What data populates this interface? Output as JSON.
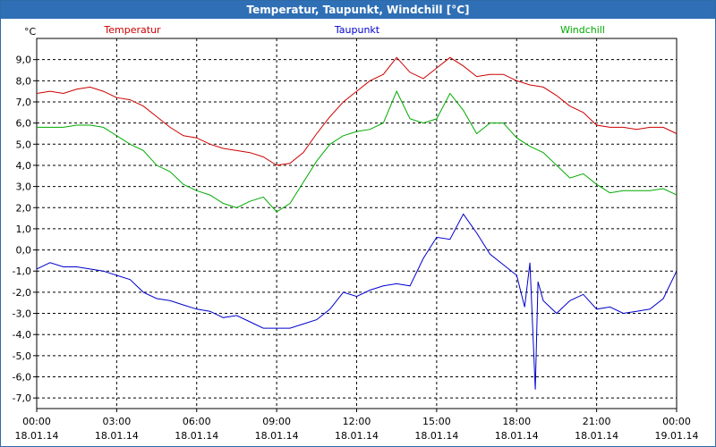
{
  "window": {
    "title": "Temperatur, Taupunkt, Windchill [°C]"
  },
  "chart_data": {
    "type": "line",
    "title": "Temperatur, Taupunkt, Windchill [°C]",
    "ylabel": "°C",
    "ylim": [
      -7.5,
      10
    ],
    "xlim": [
      0,
      24
    ],
    "grid": true,
    "y_ticks": [
      "9,0",
      "8,0",
      "7,0",
      "6,0",
      "5,0",
      "4,0",
      "3,0",
      "2,0",
      "1,0",
      "0,0",
      "-1,0",
      "-2,0",
      "-3,0",
      "-4,0",
      "-5,0",
      "-6,0",
      "-7,0"
    ],
    "x_ticks": [
      {
        "time": "00:00",
        "date": "18.01.14"
      },
      {
        "time": "03:00",
        "date": "18.01.14"
      },
      {
        "time": "06:00",
        "date": "18.01.14"
      },
      {
        "time": "09:00",
        "date": "18.01.14"
      },
      {
        "time": "12:00",
        "date": "18.01.14"
      },
      {
        "time": "15:00",
        "date": "18.01.14"
      },
      {
        "time": "18:00",
        "date": "18.01.14"
      },
      {
        "time": "21:00",
        "date": "18.01.14"
      },
      {
        "time": "00:00",
        "date": "19.01.14"
      }
    ],
    "series": [
      {
        "name": "Temperatur",
        "color": "#cc0000",
        "x": [
          0,
          0.5,
          1,
          1.5,
          2,
          2.5,
          3,
          3.5,
          4,
          4.5,
          5,
          5.5,
          6,
          6.5,
          7,
          7.5,
          8,
          8.5,
          9,
          9.5,
          10,
          10.5,
          11,
          11.5,
          12,
          12.5,
          13,
          13.5,
          14,
          14.5,
          15,
          15.5,
          16,
          16.5,
          17,
          17.5,
          18,
          18.5,
          19,
          19.5,
          20,
          20.5,
          21,
          21.5,
          22,
          22.5,
          23,
          23.5,
          24
        ],
        "values": [
          7.4,
          7.5,
          7.4,
          7.6,
          7.7,
          7.5,
          7.2,
          7.1,
          6.8,
          6.3,
          5.8,
          5.4,
          5.3,
          5.0,
          4.8,
          4.7,
          4.6,
          4.4,
          4.0,
          4.1,
          4.6,
          5.5,
          6.3,
          7.0,
          7.5,
          8.0,
          8.3,
          9.1,
          8.4,
          8.1,
          8.6,
          9.1,
          8.7,
          8.2,
          8.3,
          8.3,
          8.0,
          7.8,
          7.7,
          7.3,
          6.8,
          6.5,
          5.9,
          5.8,
          5.8,
          5.7,
          5.8,
          5.8,
          5.5
        ]
      },
      {
        "name": "Taupunkt",
        "color": "#0000cc",
        "x": [
          0,
          0.5,
          1,
          1.5,
          2,
          2.5,
          3,
          3.5,
          4,
          4.5,
          5,
          5.5,
          6,
          6.5,
          7,
          7.5,
          8,
          8.5,
          9,
          9.5,
          10,
          10.5,
          11,
          11.5,
          12,
          12.5,
          13,
          13.5,
          14,
          14.5,
          15,
          15.5,
          16,
          16.5,
          17,
          17.5,
          18,
          18.3,
          18.5,
          18.7,
          18.8,
          19,
          19.5,
          20,
          20.5,
          21,
          21.5,
          22,
          22.5,
          23,
          23.5,
          24
        ],
        "values": [
          -0.9,
          -0.6,
          -0.8,
          -0.8,
          -0.9,
          -1.0,
          -1.2,
          -1.4,
          -2.0,
          -2.3,
          -2.4,
          -2.6,
          -2.8,
          -2.9,
          -3.2,
          -3.1,
          -3.4,
          -3.7,
          -3.7,
          -3.7,
          -3.5,
          -3.3,
          -2.8,
          -2.0,
          -2.2,
          -1.9,
          -1.7,
          -1.6,
          -1.7,
          -0.4,
          0.6,
          0.5,
          1.7,
          0.8,
          -0.2,
          -0.7,
          -1.2,
          -2.7,
          -0.6,
          -6.6,
          -1.5,
          -2.4,
          -3.0,
          -2.4,
          -2.1,
          -2.8,
          -2.7,
          -3.0,
          -2.9,
          -2.8,
          -2.3,
          -1.0
        ]
      },
      {
        "name": "Windchill",
        "color": "#00aa00",
        "x": [
          0,
          0.5,
          1,
          1.5,
          2,
          2.5,
          3,
          3.5,
          4,
          4.5,
          5,
          5.5,
          6,
          6.5,
          7,
          7.5,
          8,
          8.5,
          9,
          9.5,
          10,
          10.5,
          11,
          11.5,
          12,
          12.5,
          13,
          13.5,
          14,
          14.5,
          15,
          15.5,
          16,
          16.5,
          17,
          17.5,
          18,
          18.5,
          19,
          19.5,
          20,
          20.5,
          21,
          21.5,
          22,
          22.5,
          23,
          23.5,
          24
        ],
        "values": [
          5.8,
          5.8,
          5.8,
          5.9,
          5.9,
          5.8,
          5.4,
          5.0,
          4.7,
          4.0,
          3.7,
          3.1,
          2.8,
          2.6,
          2.2,
          2.0,
          2.3,
          2.5,
          1.8,
          2.2,
          3.2,
          4.2,
          5.0,
          5.4,
          5.6,
          5.7,
          6.0,
          7.5,
          6.2,
          6.0,
          6.2,
          7.4,
          6.6,
          5.5,
          6.0,
          6.0,
          5.3,
          4.9,
          4.6,
          4.0,
          3.4,
          3.6,
          3.1,
          2.7,
          2.8,
          2.8,
          2.8,
          2.9,
          2.6
        ]
      }
    ]
  }
}
